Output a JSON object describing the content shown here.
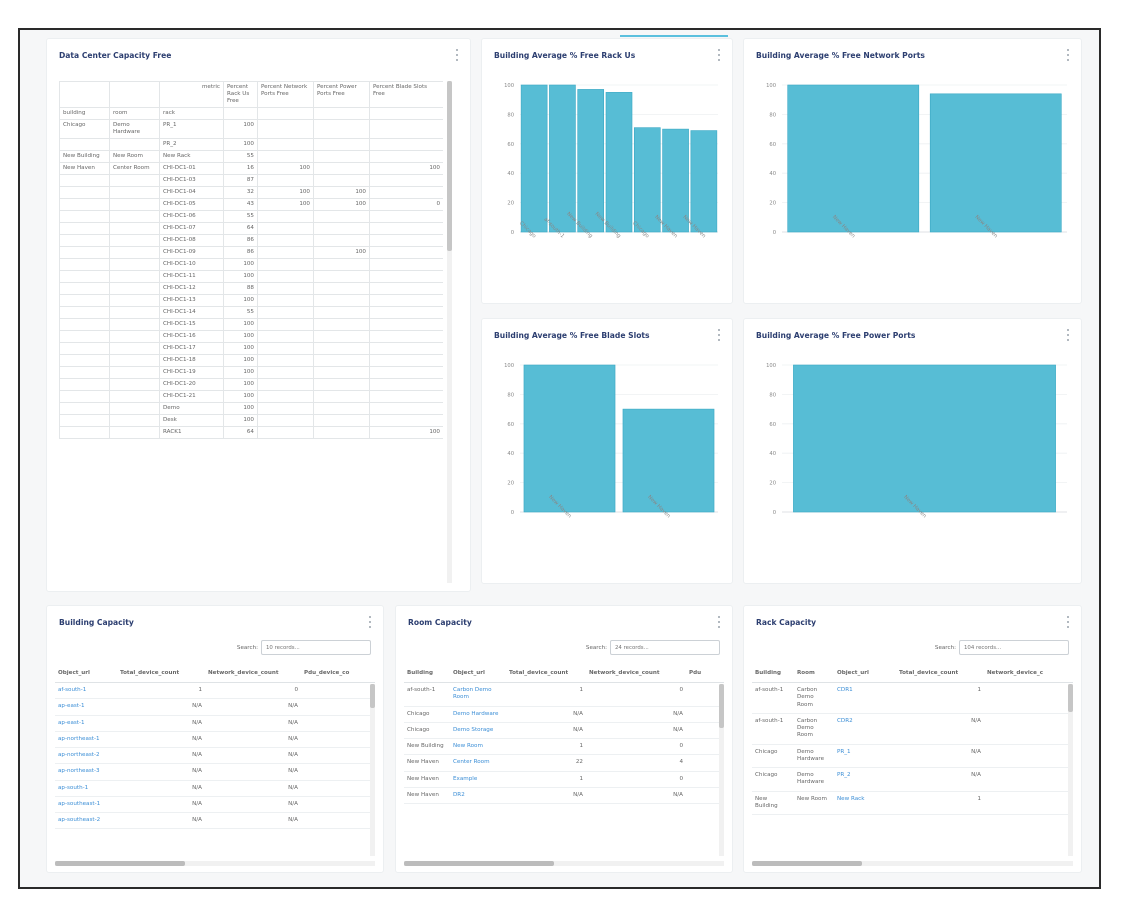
{
  "pivot": {
    "title": "Data Center Capacity Free",
    "header1": [
      "Percent Rack Us Free",
      "Percent Network Ports Free",
      "Percent Power Ports Free",
      "Percent Blade Slots Free"
    ],
    "header1_lead": "metric",
    "header2": [
      "building",
      "room",
      "rack"
    ],
    "rows": [
      {
        "building": "Chicago",
        "room": "Demo Hardware",
        "rack": "PR_1",
        "rack_u": "100",
        "network": "",
        "power": "",
        "blade": ""
      },
      {
        "building": "",
        "room": "",
        "rack": "PR_2",
        "rack_u": "100",
        "network": "",
        "power": "",
        "blade": ""
      },
      {
        "building": "New Building",
        "room": "New Room",
        "rack": "New Rack",
        "rack_u": "55",
        "network": "",
        "power": "",
        "blade": ""
      },
      {
        "building": "New Haven",
        "room": "Center Room",
        "rack": "CHI-DC1-01",
        "rack_u": "16",
        "network": "100",
        "power": "",
        "blade": "100"
      },
      {
        "building": "",
        "room": "",
        "rack": "CHI-DC1-03",
        "rack_u": "87",
        "network": "",
        "power": "",
        "blade": ""
      },
      {
        "building": "",
        "room": "",
        "rack": "CHI-DC1-04",
        "rack_u": "32",
        "network": "100",
        "power": "100",
        "blade": ""
      },
      {
        "building": "",
        "room": "",
        "rack": "CHI-DC1-05",
        "rack_u": "43",
        "network": "100",
        "power": "100",
        "blade": "0"
      },
      {
        "building": "",
        "room": "",
        "rack": "CHI-DC1-06",
        "rack_u": "55",
        "network": "",
        "power": "",
        "blade": ""
      },
      {
        "building": "",
        "room": "",
        "rack": "CHI-DC1-07",
        "rack_u": "64",
        "network": "",
        "power": "",
        "blade": ""
      },
      {
        "building": "",
        "room": "",
        "rack": "CHI-DC1-08",
        "rack_u": "86",
        "network": "",
        "power": "",
        "blade": ""
      },
      {
        "building": "",
        "room": "",
        "rack": "CHI-DC1-09",
        "rack_u": "86",
        "network": "",
        "power": "100",
        "blade": ""
      },
      {
        "building": "",
        "room": "",
        "rack": "CHI-DC1-10",
        "rack_u": "100",
        "network": "",
        "power": "",
        "blade": ""
      },
      {
        "building": "",
        "room": "",
        "rack": "CHI-DC1-11",
        "rack_u": "100",
        "network": "",
        "power": "",
        "blade": ""
      },
      {
        "building": "",
        "room": "",
        "rack": "CHI-DC1-12",
        "rack_u": "88",
        "network": "",
        "power": "",
        "blade": ""
      },
      {
        "building": "",
        "room": "",
        "rack": "CHI-DC1-13",
        "rack_u": "100",
        "network": "",
        "power": "",
        "blade": ""
      },
      {
        "building": "",
        "room": "",
        "rack": "CHI-DC1-14",
        "rack_u": "55",
        "network": "",
        "power": "",
        "blade": ""
      },
      {
        "building": "",
        "room": "",
        "rack": "CHI-DC1-15",
        "rack_u": "100",
        "network": "",
        "power": "",
        "blade": ""
      },
      {
        "building": "",
        "room": "",
        "rack": "CHI-DC1-16",
        "rack_u": "100",
        "network": "",
        "power": "",
        "blade": ""
      },
      {
        "building": "",
        "room": "",
        "rack": "CHI-DC1-17",
        "rack_u": "100",
        "network": "",
        "power": "",
        "blade": ""
      },
      {
        "building": "",
        "room": "",
        "rack": "CHI-DC1-18",
        "rack_u": "100",
        "network": "",
        "power": "",
        "blade": ""
      },
      {
        "building": "",
        "room": "",
        "rack": "CHI-DC1-19",
        "rack_u": "100",
        "network": "",
        "power": "",
        "blade": ""
      },
      {
        "building": "",
        "room": "",
        "rack": "CHI-DC1-20",
        "rack_u": "100",
        "network": "",
        "power": "",
        "blade": ""
      },
      {
        "building": "",
        "room": "",
        "rack": "CHI-DC1-21",
        "rack_u": "100",
        "network": "",
        "power": "",
        "blade": ""
      },
      {
        "building": "",
        "room": "",
        "rack": "Demo",
        "rack_u": "100",
        "network": "",
        "power": "",
        "blade": ""
      },
      {
        "building": "",
        "room": "",
        "rack": "Desk",
        "rack_u": "100",
        "network": "",
        "power": "",
        "blade": ""
      },
      {
        "building": "",
        "room": "",
        "rack": "RACK1",
        "rack_u": "64",
        "network": "",
        "power": "",
        "blade": "100"
      }
    ]
  },
  "charts": [
    {
      "title": "Building Average % Free Rack Us",
      "chart_data": {
        "type": "bar",
        "categories": [
          "Chicago",
          "af-south-1",
          "New Building",
          "New Building",
          "Chicago",
          "New Haven",
          "New Haven"
        ],
        "values": [
          100,
          100,
          97,
          95,
          71,
          70,
          69
        ],
        "ylim": [
          0,
          100
        ],
        "yticks": [
          0,
          20,
          40,
          60,
          80,
          100
        ]
      }
    },
    {
      "title": "Building Average % Free Network Ports",
      "chart_data": {
        "type": "bar",
        "categories": [
          "New Haven",
          "New Haven"
        ],
        "values": [
          100,
          94
        ],
        "ylim": [
          0,
          100
        ],
        "yticks": [
          0,
          20,
          40,
          60,
          80,
          100
        ]
      }
    },
    {
      "title": "Building Average % Free Blade Slots",
      "chart_data": {
        "type": "bar",
        "categories": [
          "New Haven",
          "New Haven"
        ],
        "values": [
          100,
          70
        ],
        "ylim": [
          0,
          100
        ],
        "yticks": [
          0,
          20,
          40,
          60,
          80,
          100
        ]
      }
    },
    {
      "title": "Building Average % Free Power Ports",
      "chart_data": {
        "type": "bar",
        "categories": [
          "New Haven"
        ],
        "values": [
          100
        ],
        "ylim": [
          0,
          100
        ],
        "yticks": [
          0,
          20,
          40,
          60,
          80,
          100
        ]
      }
    }
  ],
  "building_capacity": {
    "title": "Building Capacity",
    "search_label": "Search:",
    "search_placeholder": "10 records...",
    "columns": [
      "Object_url",
      "Total_device_count",
      "Network_device_count",
      "Pdu_device_co"
    ],
    "rows": [
      [
        "af-south-1",
        "1",
        "0",
        ""
      ],
      [
        "ap-east-1",
        "N/A",
        "N/A",
        ""
      ],
      [
        "ap-east-1",
        "N/A",
        "N/A",
        ""
      ],
      [
        "ap-northeast-1",
        "N/A",
        "N/A",
        ""
      ],
      [
        "ap-northeast-2",
        "N/A",
        "N/A",
        ""
      ],
      [
        "ap-northeast-3",
        "N/A",
        "N/A",
        ""
      ],
      [
        "ap-south-1",
        "N/A",
        "N/A",
        ""
      ],
      [
        "ap-southeast-1",
        "N/A",
        "N/A",
        ""
      ],
      [
        "ap-southeast-2",
        "N/A",
        "N/A",
        ""
      ]
    ]
  },
  "room_capacity": {
    "title": "Room Capacity",
    "search_label": "Search:",
    "search_placeholder": "24 records...",
    "columns": [
      "Building",
      "Object_url",
      "Total_device_count",
      "Network_device_count",
      "Pdu"
    ],
    "rows": [
      [
        "af-south-1",
        "Carbon Demo Room",
        "1",
        "0",
        ""
      ],
      [
        "Chicago",
        "Demo Hardware",
        "N/A",
        "N/A",
        ""
      ],
      [
        "Chicago",
        "Demo Storage",
        "N/A",
        "N/A",
        ""
      ],
      [
        "New Building",
        "New Room",
        "1",
        "0",
        ""
      ],
      [
        "New Haven",
        "Center Room",
        "22",
        "4",
        ""
      ],
      [
        "New Haven",
        "Example",
        "1",
        "0",
        ""
      ],
      [
        "New Haven",
        "DR2",
        "N/A",
        "N/A",
        ""
      ]
    ]
  },
  "rack_capacity": {
    "title": "Rack Capacity",
    "search_label": "Search:",
    "search_placeholder": "104 records...",
    "columns": [
      "Building",
      "Room",
      "Object_url",
      "Total_device_count",
      "Network_device_c"
    ],
    "rows": [
      [
        "af-south-1",
        "Carbon Demo Room",
        "CDR1",
        "1",
        ""
      ],
      [
        "af-south-1",
        "Carbon Demo Room",
        "CDR2",
        "N/A",
        ""
      ],
      [
        "Chicago",
        "Demo Hardware",
        "PR_1",
        "N/A",
        ""
      ],
      [
        "Chicago",
        "Demo Hardware",
        "PR_2",
        "N/A",
        ""
      ],
      [
        "New Building",
        "New Room",
        "New Rack",
        "1",
        ""
      ]
    ]
  },
  "colors": {
    "bar": "#57bdd5",
    "bar_stroke": "#3aa8c4",
    "title": "#2c3e70",
    "link": "#3b8ed6"
  }
}
